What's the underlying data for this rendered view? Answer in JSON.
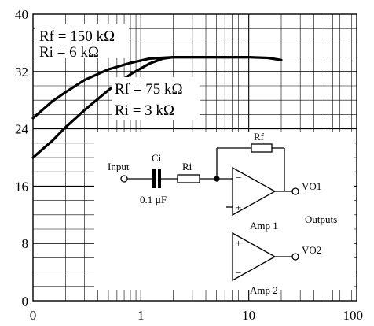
{
  "chart_data": {
    "type": "line",
    "x_scale": "log",
    "xlim": [
      0.1,
      100
    ],
    "ylim": [
      0,
      40
    ],
    "x_ticks": [
      {
        "value": 0.1,
        "label": "0"
      },
      {
        "value": 1,
        "label": "1"
      },
      {
        "value": 10,
        "label": "10"
      },
      {
        "value": 100,
        "label": "100"
      }
    ],
    "y_ticks": [
      {
        "value": 0,
        "label": "0"
      },
      {
        "value": 8,
        "label": "8"
      },
      {
        "value": 16,
        "label": "16"
      },
      {
        "value": 24,
        "label": "24"
      },
      {
        "value": 32,
        "label": "32"
      },
      {
        "value": 40,
        "label": "40"
      }
    ],
    "grid": true,
    "series": [
      {
        "annotation": [
          "Rf = 150 kΩ",
          "Ri = 6 kΩ"
        ],
        "x": [
          0.1,
          0.15,
          0.2,
          0.3,
          0.5,
          0.8,
          1.2,
          2,
          3,
          5,
          10,
          15,
          20
        ],
        "y": [
          25.5,
          27.8,
          29.1,
          30.8,
          32.3,
          33.2,
          33.8,
          34.0,
          34.0,
          34.0,
          34.0,
          33.9,
          33.6
        ]
      },
      {
        "annotation": [
          "Rf = 75 kΩ",
          "Ri = 3 kΩ"
        ],
        "x": [
          0.1,
          0.15,
          0.2,
          0.3,
          0.5,
          0.8,
          1.2,
          1.6,
          2.0,
          3,
          5,
          10
        ],
        "y": [
          20.0,
          22.3,
          24.2,
          26.6,
          29.4,
          31.6,
          33.1,
          33.8,
          34.0,
          34.0,
          34.0,
          34.0
        ]
      }
    ]
  },
  "schematic": {
    "input_label": "Input",
    "ci_label": "Ci",
    "ci_value": "0.1 µF",
    "ri_label": "Ri",
    "rf_label": "Rf",
    "amp1_label": "Amp 1",
    "amp2_label": "Amp 2",
    "vo1_label": "VO1",
    "vo2_label": "VO2",
    "outputs_label": "Outputs",
    "minus_sign": "−",
    "plus_sign": "+"
  }
}
